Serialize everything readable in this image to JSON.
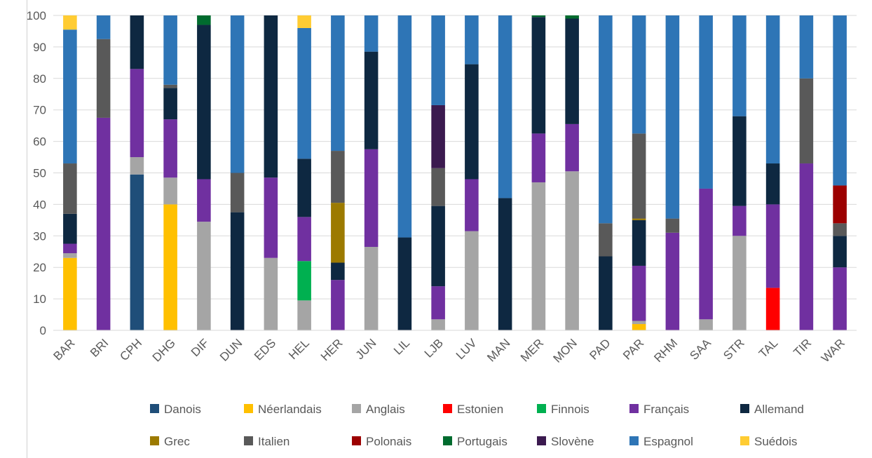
{
  "chart_data": {
    "type": "bar",
    "stacked": true,
    "percent_stacked": true,
    "title": "",
    "xlabel": "",
    "ylabel": "",
    "ylim": [
      0,
      100
    ],
    "yticks": [
      0,
      10,
      20,
      30,
      40,
      50,
      60,
      70,
      80,
      90,
      100
    ],
    "grid": true,
    "legend_position": "bottom",
    "categories": [
      "BAR",
      "BRI",
      "CPH",
      "DHG",
      "DIF",
      "DUN",
      "EDS",
      "HEL",
      "HER",
      "JUN",
      "LIL",
      "LJB",
      "LUV",
      "MAN",
      "MER",
      "MON",
      "PAD",
      "PAR",
      "RHM",
      "SAA",
      "STR",
      "TAL",
      "TIR",
      "WAR"
    ],
    "series": [
      {
        "name": "Danois",
        "color": "#1f4e79",
        "values": [
          0,
          0,
          49.5,
          0,
          0,
          0,
          0,
          0,
          0,
          0,
          0,
          0,
          0,
          0,
          0,
          0,
          0,
          0,
          0,
          0,
          0,
          0,
          0,
          0
        ]
      },
      {
        "name": "Néerlandais",
        "color": "#ffc000",
        "values": [
          23,
          0,
          0,
          40,
          0,
          0,
          0,
          0,
          0,
          0,
          0,
          0,
          0,
          0,
          0,
          0,
          0,
          2,
          0,
          0,
          0,
          0,
          0,
          0
        ]
      },
      {
        "name": "Anglais",
        "color": "#a5a5a5",
        "values": [
          1.5,
          0,
          5.5,
          8.5,
          34.5,
          0,
          23,
          9.5,
          0,
          26.5,
          0,
          3.5,
          31.5,
          0,
          47,
          50.5,
          0,
          1,
          0,
          3.5,
          30,
          0,
          0,
          0
        ]
      },
      {
        "name": "Estonien",
        "color": "#ff0000",
        "values": [
          0,
          0,
          0,
          0,
          0,
          0,
          0,
          0,
          0,
          0,
          0,
          0,
          0,
          0,
          0,
          0,
          0,
          0,
          0,
          0,
          0,
          13.5,
          0,
          0
        ]
      },
      {
        "name": "Finnois",
        "color": "#00b050",
        "values": [
          0,
          0,
          0,
          0,
          0,
          0,
          0,
          12.5,
          0,
          0,
          0,
          0,
          0,
          0,
          0,
          0,
          0,
          0,
          0,
          0,
          0,
          0,
          0,
          0
        ]
      },
      {
        "name": "Français",
        "color": "#7030a0",
        "values": [
          3,
          67.5,
          28,
          18.5,
          13.5,
          0,
          25.5,
          14,
          16,
          31,
          0,
          10.5,
          16.5,
          0,
          15.5,
          15,
          0,
          17.5,
          31,
          41.5,
          9.5,
          26.5,
          53,
          20
        ]
      },
      {
        "name": "Allemand",
        "color": "#0e2841",
        "values": [
          9.5,
          0,
          17,
          10,
          49,
          37.5,
          51.5,
          18.5,
          5.5,
          31,
          29.5,
          25.5,
          36.5,
          42,
          37,
          33.5,
          23.5,
          14.5,
          0,
          0,
          28.5,
          13,
          0,
          10
        ]
      },
      {
        "name": "Grec",
        "color": "#9c7a00",
        "values": [
          0,
          0,
          0,
          0,
          0,
          0,
          0,
          0,
          19,
          0,
          0,
          0,
          0,
          0,
          0,
          0,
          0,
          0.5,
          0,
          0,
          0,
          0,
          0,
          0
        ]
      },
      {
        "name": "Italien",
        "color": "#595959",
        "values": [
          16,
          25,
          0,
          1,
          0,
          12.5,
          0,
          0,
          16.5,
          0,
          0,
          12,
          0,
          0,
          0,
          0,
          10.5,
          27,
          4.5,
          0,
          0,
          0,
          27,
          4
        ]
      },
      {
        "name": "Polonais",
        "color": "#9c0000",
        "values": [
          0,
          0,
          0,
          0,
          0,
          0,
          0,
          0,
          0,
          0,
          0,
          0,
          0,
          0,
          0,
          0,
          0,
          0,
          0,
          0,
          0,
          0,
          0,
          12
        ]
      },
      {
        "name": "Portugais",
        "color": "#006b2e",
        "values": [
          0,
          0,
          0,
          0,
          3,
          0,
          0,
          0,
          0,
          0,
          0,
          0,
          0,
          0,
          0.5,
          1.5,
          0,
          0,
          0,
          0,
          0,
          0,
          0,
          0
        ]
      },
      {
        "name": "Slovène",
        "color": "#3b1a4f",
        "values": [
          0,
          0,
          0,
          0,
          0,
          0,
          0,
          0,
          0,
          0,
          0,
          20,
          0,
          0,
          0,
          0,
          0,
          0,
          0,
          0,
          0,
          0,
          0,
          0
        ]
      },
      {
        "name": "Espagnol",
        "color": "#2e75b6",
        "values": [
          42.5,
          7.5,
          0,
          22,
          0,
          50,
          0,
          41.5,
          43,
          11.5,
          70.5,
          28.5,
          15.5,
          58,
          0,
          0,
          66,
          37.5,
          64.5,
          55,
          32,
          47,
          20,
          54
        ]
      },
      {
        "name": "Suédois",
        "color": "#ffcc33",
        "values": [
          4.5,
          0,
          0,
          0,
          0,
          0,
          0,
          4,
          0,
          0,
          0,
          0,
          0,
          0,
          0,
          0,
          0,
          0,
          0,
          0,
          0,
          0,
          0,
          0
        ]
      }
    ]
  }
}
